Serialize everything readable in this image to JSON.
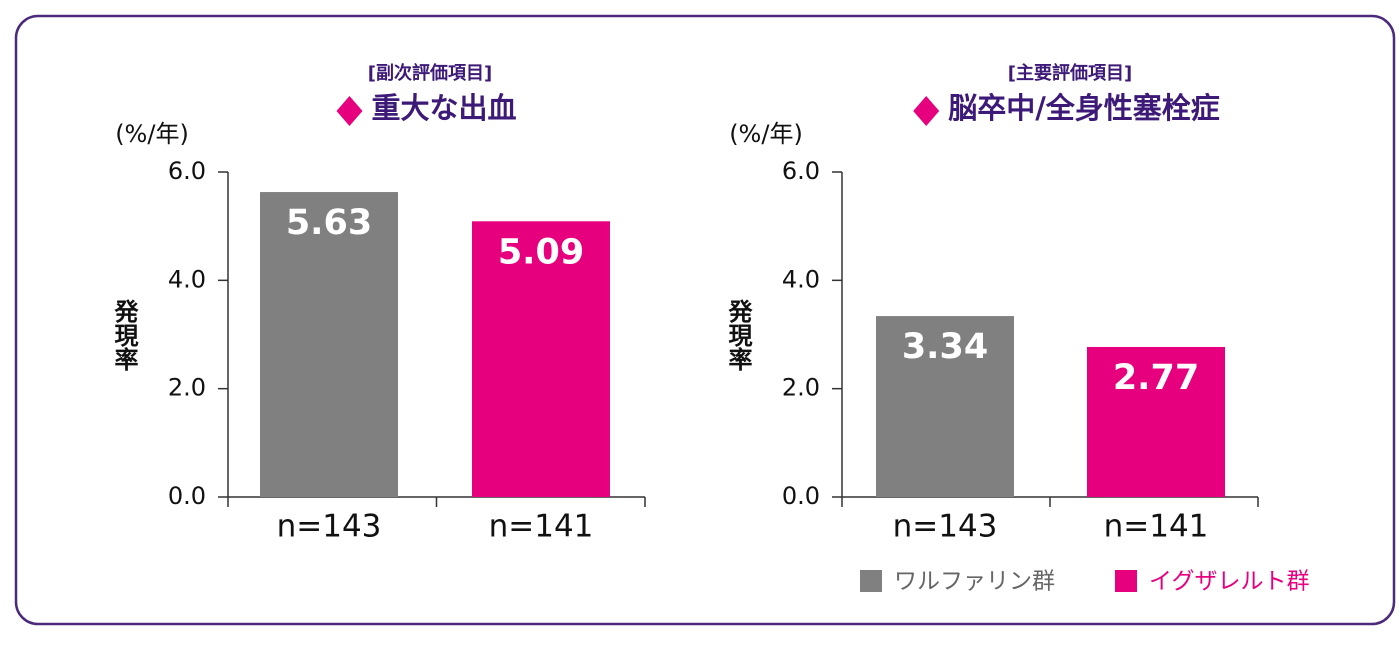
{
  "chart_data": [
    {
      "type": "bar",
      "subtitle": "[副次評価項目]",
      "title": "重大な出血",
      "unit": "(%/年)",
      "ylabel": "発現率",
      "categories": [
        "n=143",
        "n=141"
      ],
      "values": [
        5.63,
        5.09
      ],
      "colors": [
        "#808080",
        "#e6007e"
      ],
      "ylim": [
        0,
        6
      ],
      "yticks": [
        {
          "value": 0,
          "label": "0.0"
        },
        {
          "value": 2,
          "label": "2.0"
        },
        {
          "value": 4,
          "label": "4.0"
        },
        {
          "value": 6,
          "label": "6.0"
        }
      ]
    },
    {
      "type": "bar",
      "subtitle": "[主要評価項目]",
      "title": "脳卒中/全身性塞栓症",
      "unit": "(%/年)",
      "ylabel": "発現率",
      "categories": [
        "n=143",
        "n=141"
      ],
      "values": [
        3.34,
        2.77
      ],
      "colors": [
        "#808080",
        "#e6007e"
      ],
      "ylim": [
        0,
        6
      ],
      "yticks": [
        {
          "value": 0,
          "label": "0.0"
        },
        {
          "value": 2,
          "label": "2.0"
        },
        {
          "value": 4,
          "label": "4.0"
        },
        {
          "value": 6,
          "label": "6.0"
        }
      ]
    }
  ],
  "legend": [
    {
      "name": "ワルファリン群",
      "color": "#808080",
      "text_color": "#666666"
    },
    {
      "name": "イグザレルト群",
      "color": "#e6007e",
      "text_color": "#e6007e"
    }
  ]
}
